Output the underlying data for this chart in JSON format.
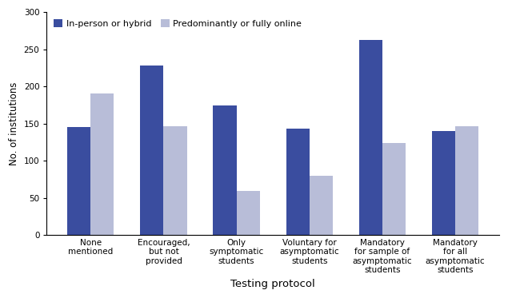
{
  "categories": [
    "None\nmentioned",
    "Encouraged,\nbut not\nprovided",
    "Only\nsymptomatic\nstudents",
    "Voluntary for\nasymptomatic\nstudents",
    "Mandatory\nfor sample of\nasymptomatic\nstudents",
    "Mandatory\nfor all\nasymptomatic\nstudents"
  ],
  "inperson_values": [
    145,
    228,
    174,
    143,
    262,
    140
  ],
  "online_values": [
    191,
    146,
    59,
    80,
    124,
    146
  ],
  "inperson_color": "#3A4D9F",
  "online_color": "#B8BDD8",
  "legend_labels": [
    "In-person or hybrid",
    "Predominantly or fully online"
  ],
  "ylabel": "No. of institutions",
  "xlabel": "Testing protocol",
  "ylim": [
    0,
    300
  ],
  "yticks": [
    0,
    50,
    100,
    150,
    200,
    250,
    300
  ],
  "bar_width": 0.32,
  "axis_fontsize": 8.5,
  "tick_fontsize": 7.5,
  "legend_fontsize": 8.0,
  "xlabel_fontsize": 9.5,
  "ylabel_fontsize": 8.5
}
